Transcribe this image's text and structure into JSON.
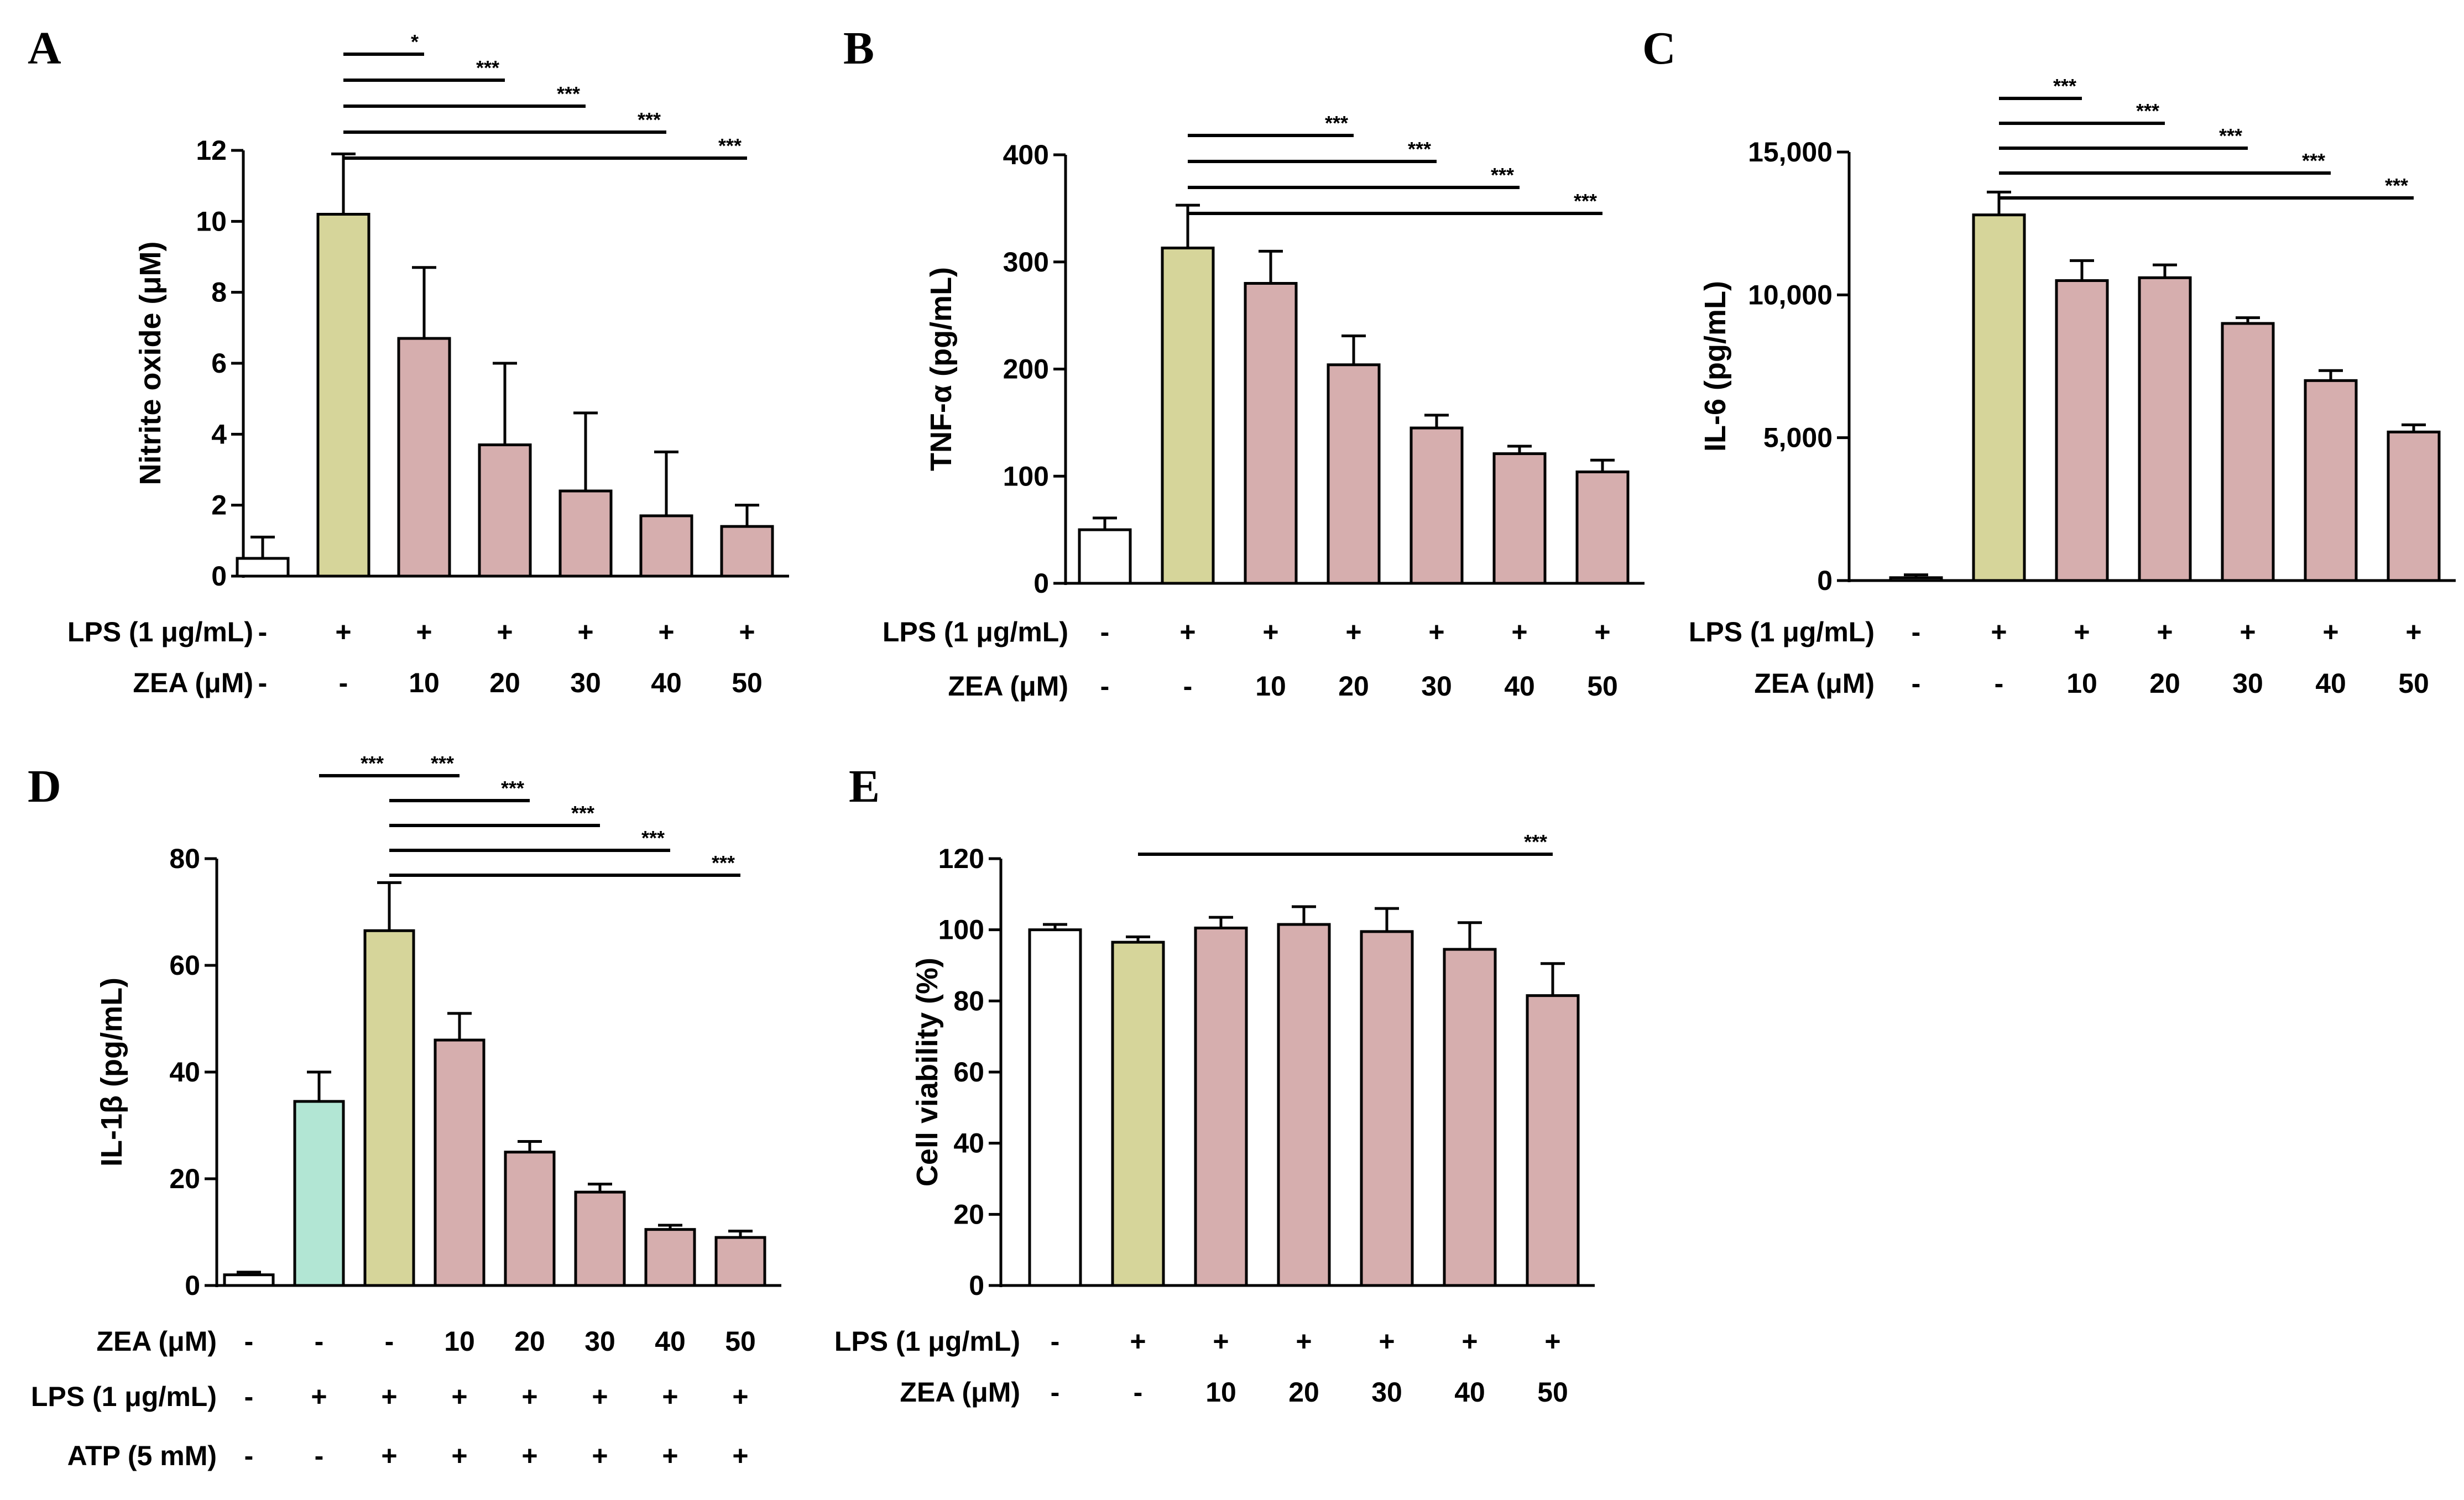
{
  "colors": {
    "control": "#ffffff",
    "lps": "#d6d59a",
    "zea": "#d6aeae",
    "lps_only": "#b2e6d4",
    "stroke": "#000000"
  },
  "chart_data": [
    {
      "id": "A",
      "type": "bar",
      "panel_letter": "A",
      "ylabel": "Nitrite oxide (μM)",
      "ylim": [
        0,
        12
      ],
      "yticks": [
        "0",
        "2",
        "4",
        "6",
        "8",
        "10",
        "12"
      ],
      "ytick_values": [
        0,
        2,
        4,
        6,
        8,
        10,
        12
      ],
      "values": [
        0.5,
        10.2,
        6.7,
        3.7,
        2.4,
        1.7,
        1.4
      ],
      "errors": [
        0.6,
        1.7,
        2.0,
        2.3,
        2.2,
        1.8,
        0.6
      ],
      "bar_colors": [
        "control",
        "lps",
        "zea",
        "zea",
        "zea",
        "zea",
        "zea"
      ],
      "table": [
        {
          "label": "LPS (1 μg/mL)",
          "values": [
            "-",
            "+",
            "+",
            "+",
            "+",
            "+",
            "+"
          ]
        },
        {
          "label": "ZEA (μM)",
          "values": [
            "-",
            "-",
            "10",
            "20",
            "30",
            "40",
            "50"
          ]
        }
      ],
      "significance": [
        {
          "from": 1,
          "to": 2,
          "label": "*"
        },
        {
          "from": 1,
          "to": 3,
          "label": "***"
        },
        {
          "from": 1,
          "to": 4,
          "label": "***"
        },
        {
          "from": 1,
          "to": 5,
          "label": "***"
        },
        {
          "from": 1,
          "to": 6,
          "label": "***"
        }
      ]
    },
    {
      "id": "B",
      "type": "bar",
      "panel_letter": "B",
      "ylabel": "TNF-α (pg/mL)",
      "ylim": [
        0,
        400
      ],
      "yticks": [
        "0",
        "100",
        "200",
        "300",
        "400"
      ],
      "ytick_values": [
        0,
        100,
        200,
        300,
        400
      ],
      "values": [
        50,
        313,
        280,
        204,
        145,
        121,
        104
      ],
      "errors": [
        11,
        40,
        30,
        27,
        12,
        7,
        11
      ],
      "bar_colors": [
        "control",
        "lps",
        "zea",
        "zea",
        "zea",
        "zea",
        "zea"
      ],
      "table": [
        {
          "label": "LPS (1 μg/mL)",
          "values": [
            "-",
            "+",
            "+",
            "+",
            "+",
            "+",
            "+"
          ]
        },
        {
          "label": "ZEA (μM)",
          "values": [
            "-",
            "-",
            "10",
            "20",
            "30",
            "40",
            "50"
          ]
        }
      ],
      "significance": [
        {
          "from": 1,
          "to": 3,
          "label": "***"
        },
        {
          "from": 1,
          "to": 4,
          "label": "***"
        },
        {
          "from": 1,
          "to": 5,
          "label": "***"
        },
        {
          "from": 1,
          "to": 6,
          "label": "***"
        }
      ]
    },
    {
      "id": "C",
      "type": "bar",
      "panel_letter": "C",
      "ylabel": "IL-6 (pg/mL)",
      "ylim": [
        0,
        15000
      ],
      "yticks": [
        "0",
        "5,000",
        "10,000",
        "15,000"
      ],
      "ytick_values": [
        0,
        5000,
        10000,
        15000
      ],
      "values": [
        100,
        12800,
        10500,
        10600,
        9000,
        7000,
        5200
      ],
      "errors": [
        100,
        800,
        700,
        450,
        200,
        350,
        250
      ],
      "bar_colors": [
        "control",
        "lps",
        "zea",
        "zea",
        "zea",
        "zea",
        "zea"
      ],
      "table": [
        {
          "label": "LPS (1 μg/mL)",
          "values": [
            "-",
            "+",
            "+",
            "+",
            "+",
            "+",
            "+"
          ]
        },
        {
          "label": "ZEA (μM)",
          "values": [
            "-",
            "-",
            "10",
            "20",
            "30",
            "40",
            "50"
          ]
        }
      ],
      "significance": [
        {
          "from": 1,
          "to": 2,
          "label": "***"
        },
        {
          "from": 1,
          "to": 3,
          "label": "***"
        },
        {
          "from": 1,
          "to": 4,
          "label": "***"
        },
        {
          "from": 1,
          "to": 5,
          "label": "***"
        },
        {
          "from": 1,
          "to": 6,
          "label": "***"
        }
      ]
    },
    {
      "id": "D",
      "type": "bar",
      "panel_letter": "D",
      "ylabel": "IL-1β (pg/mL)",
      "ylim": [
        0,
        80
      ],
      "yticks": [
        "0",
        "20",
        "40",
        "60",
        "80"
      ],
      "ytick_values": [
        0,
        20,
        40,
        60,
        80
      ],
      "values": [
        2,
        34.5,
        66.5,
        46,
        25,
        17.5,
        10.5,
        9
      ],
      "errors": [
        0.5,
        5.5,
        9,
        5,
        2,
        1.5,
        0.8,
        1.2
      ],
      "bar_colors": [
        "control",
        "lps_only",
        "lps",
        "zea",
        "zea",
        "zea",
        "zea",
        "zea"
      ],
      "table": [
        {
          "label": "ZEA (μM)",
          "values": [
            "-",
            "-",
            "-",
            "10",
            "20",
            "30",
            "40",
            "50"
          ]
        },
        {
          "label": "LPS (1 μg/mL)",
          "values": [
            "-",
            "+",
            "+",
            "+",
            "+",
            "+",
            "+",
            "+"
          ]
        },
        {
          "label": "ATP (5 mM)",
          "values": [
            "-",
            "-",
            "+",
            "+",
            "+",
            "+",
            "+",
            "+"
          ]
        }
      ],
      "significance": [
        {
          "from": 1,
          "to": 2,
          "label": "***",
          "free": true
        },
        {
          "from": 2,
          "to": 3,
          "label": "***"
        },
        {
          "from": 2,
          "to": 4,
          "label": "***"
        },
        {
          "from": 2,
          "to": 5,
          "label": "***"
        },
        {
          "from": 2,
          "to": 6,
          "label": "***"
        },
        {
          "from": 2,
          "to": 7,
          "label": "***"
        }
      ]
    },
    {
      "id": "E",
      "type": "bar",
      "panel_letter": "E",
      "ylabel": "Cell viability (%)",
      "ylim": [
        0,
        120
      ],
      "yticks": [
        "0",
        "20",
        "40",
        "60",
        "80",
        "100",
        "120"
      ],
      "ytick_values": [
        0,
        20,
        40,
        60,
        80,
        100,
        120
      ],
      "values": [
        100,
        96.5,
        100.5,
        101.5,
        99.5,
        94.5,
        81.5
      ],
      "errors": [
        1.5,
        1.5,
        3,
        5,
        6.5,
        7.5,
        9
      ],
      "bar_colors": [
        "control",
        "lps",
        "zea",
        "zea",
        "zea",
        "zea",
        "zea"
      ],
      "table": [
        {
          "label": "LPS (1 μg/mL)",
          "values": [
            "-",
            "+",
            "+",
            "+",
            "+",
            "+",
            "+"
          ]
        },
        {
          "label": "ZEA (μM)",
          "values": [
            "-",
            "-",
            "10",
            "20",
            "30",
            "40",
            "50"
          ]
        }
      ],
      "significance": [
        {
          "from": 1,
          "to": 6,
          "label": "***",
          "free": true
        }
      ]
    }
  ]
}
